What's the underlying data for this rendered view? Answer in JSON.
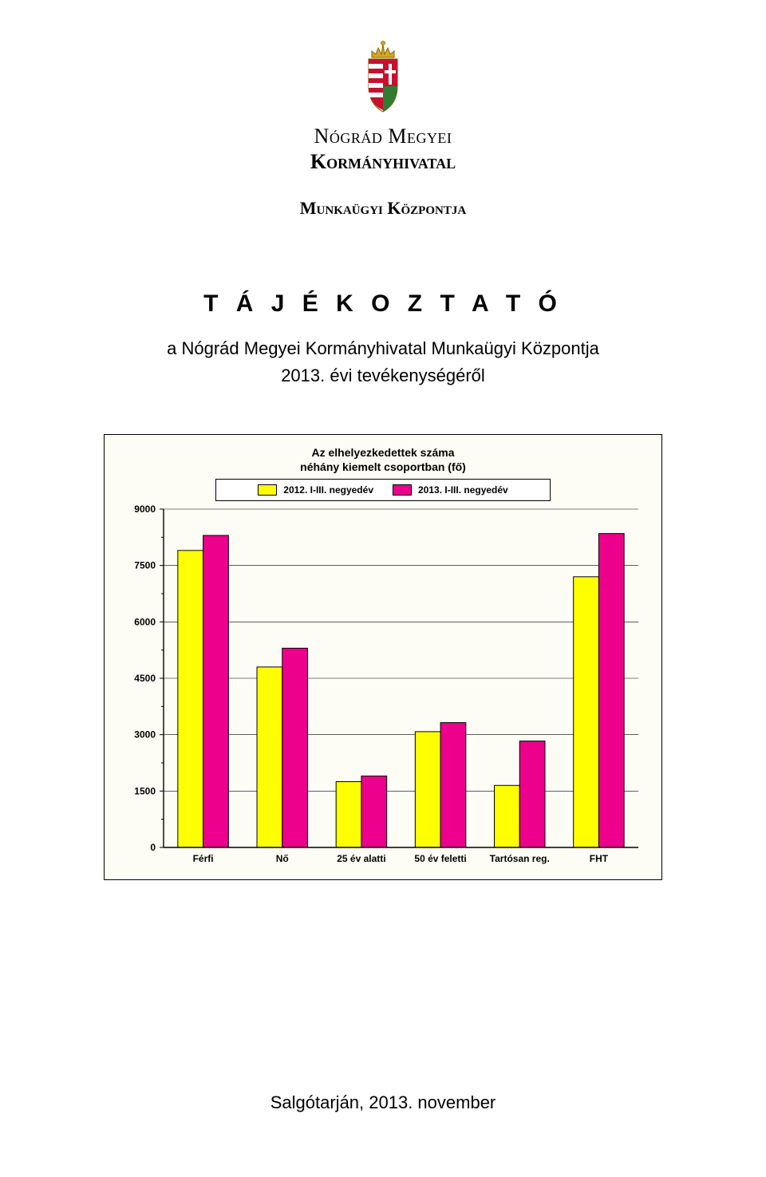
{
  "header": {
    "org_line1": "Nógrád Megyei",
    "org_line2": "Kormányhivatal",
    "org_line3": "Munkaügyi Központja",
    "crest_colors": {
      "crown_gold": "#d4a828",
      "shield_red": "#c8102e",
      "shield_green": "#2e7d32",
      "shield_white": "#ffffff",
      "shield_outline": "#8a6500"
    }
  },
  "titles": {
    "main": "T Á J É K O Z T A T Ó",
    "sub1": "a Nógrád Megyei Kormányhivatal Munkaügyi Központja",
    "sub2": "2013. évi tevékenységéről"
  },
  "chart": {
    "type": "bar",
    "title_line1": "Az elhelyezkedettek száma",
    "title_line2": "néhány kiemelt csoportban (fő)",
    "legend": [
      {
        "label": "2012. I-III. negyedév",
        "color": "#ffff00"
      },
      {
        "label": "2013. I-III. negyedév",
        "color": "#ec008c"
      }
    ],
    "categories": [
      "Férfi",
      "Nő",
      "25 év alatti",
      "50 év feletti",
      "Tartósan reg.",
      "FHT"
    ],
    "series2012": [
      7900,
      4800,
      1750,
      3080,
      1650,
      7200
    ],
    "series2013": [
      8300,
      5300,
      1900,
      3320,
      2830,
      8350
    ],
    "ylim": [
      0,
      9000
    ],
    "ytick_step": 1500,
    "background_color": "#fdfdf6",
    "grid_color": "#000000",
    "axis_color": "#000000",
    "bar_border_color": "#000000",
    "label_fontsize": 12,
    "tick_fontsize": 12,
    "bar_width_ratio": 0.32
  },
  "footer": {
    "text": "Salgótarján, 2013. november"
  }
}
